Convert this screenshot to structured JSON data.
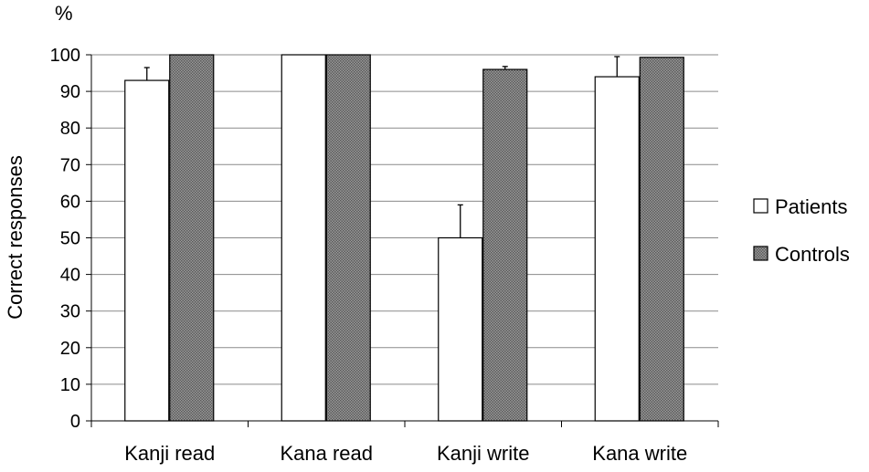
{
  "chart_data": {
    "type": "bar",
    "unit_label": "%",
    "ylabel": "Correct responses",
    "xlabel": "",
    "title": "",
    "ylim": [
      0,
      100
    ],
    "ytick_step": 10,
    "grid": true,
    "legend_position": "right",
    "categories": [
      "Kanji read",
      "Kana read",
      "Kanji write",
      "Kana write"
    ],
    "series": [
      {
        "name": "Patients",
        "color": "#ffffff",
        "pattern": "none",
        "values": [
          93,
          100,
          50,
          94
        ],
        "error_upper": [
          96.5,
          100,
          59,
          99.5
        ]
      },
      {
        "name": "Controls",
        "color": "#8c8c8c",
        "pattern": "dotted-gray",
        "values": [
          100,
          100,
          96,
          99.3
        ],
        "error_upper": [
          100,
          100,
          96.8,
          99.5
        ]
      }
    ]
  }
}
